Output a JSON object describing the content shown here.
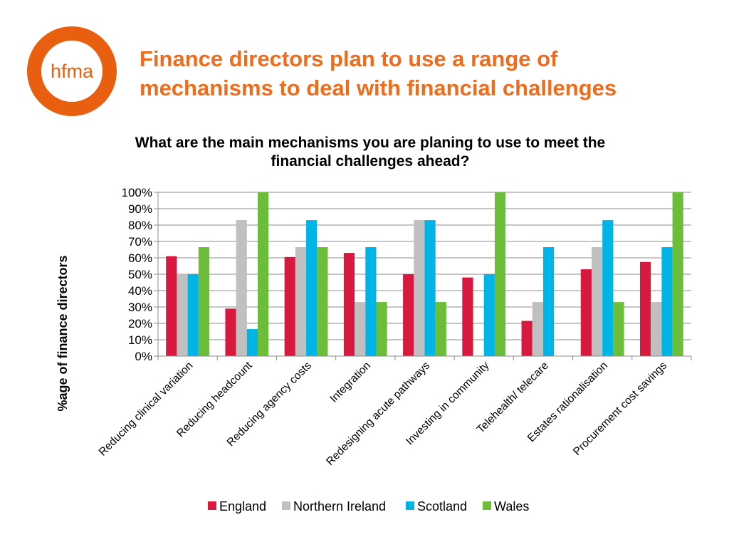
{
  "logo": {
    "text": "hfma",
    "ring_color": "#e8600f"
  },
  "headline": {
    "line1": "Finance directors plan to use a range of",
    "line2": "mechanisms to deal with financial challenges",
    "color": "#ee6c1b"
  },
  "chart_data": {
    "type": "bar",
    "title_line1": "What are the main mechanisms you are planing to use to meet the",
    "title_line2": "financial challenges ahead?",
    "ylabel": "%age of finance directors",
    "xlabel": "",
    "ylim": [
      0,
      100
    ],
    "yticks": [
      "0%",
      "10%",
      "20%",
      "30%",
      "40%",
      "50%",
      "60%",
      "70%",
      "80%",
      "90%",
      "100%"
    ],
    "grid": true,
    "legend_position": "bottom",
    "categories": [
      "Reducing clinical variation",
      "Reducing headcount",
      "Reducing agency costs",
      "Integration",
      "Redesigning acute pathways",
      "Investing in community",
      "Telehealth/ telecare",
      "Estates rationalisation",
      "Procurement cost savings"
    ],
    "series": [
      {
        "name": "England",
        "color": "#d7183f",
        "values": [
          61,
          29,
          60.5,
          63,
          50,
          48,
          21.5,
          53,
          57.5
        ]
      },
      {
        "name": "Northern Ireland",
        "color": "#c0c0c0",
        "values": [
          50,
          83,
          66.5,
          33,
          83,
          0,
          33,
          66.5,
          33
        ]
      },
      {
        "name": "Scotland",
        "color": "#00b4e6",
        "values": [
          50,
          16.5,
          83,
          66.5,
          83,
          50,
          66.5,
          83,
          66.5
        ]
      },
      {
        "name": "Wales",
        "color": "#6cbe3a",
        "values": [
          66.5,
          100,
          66.5,
          33,
          33,
          100,
          0,
          33,
          100
        ]
      }
    ]
  }
}
